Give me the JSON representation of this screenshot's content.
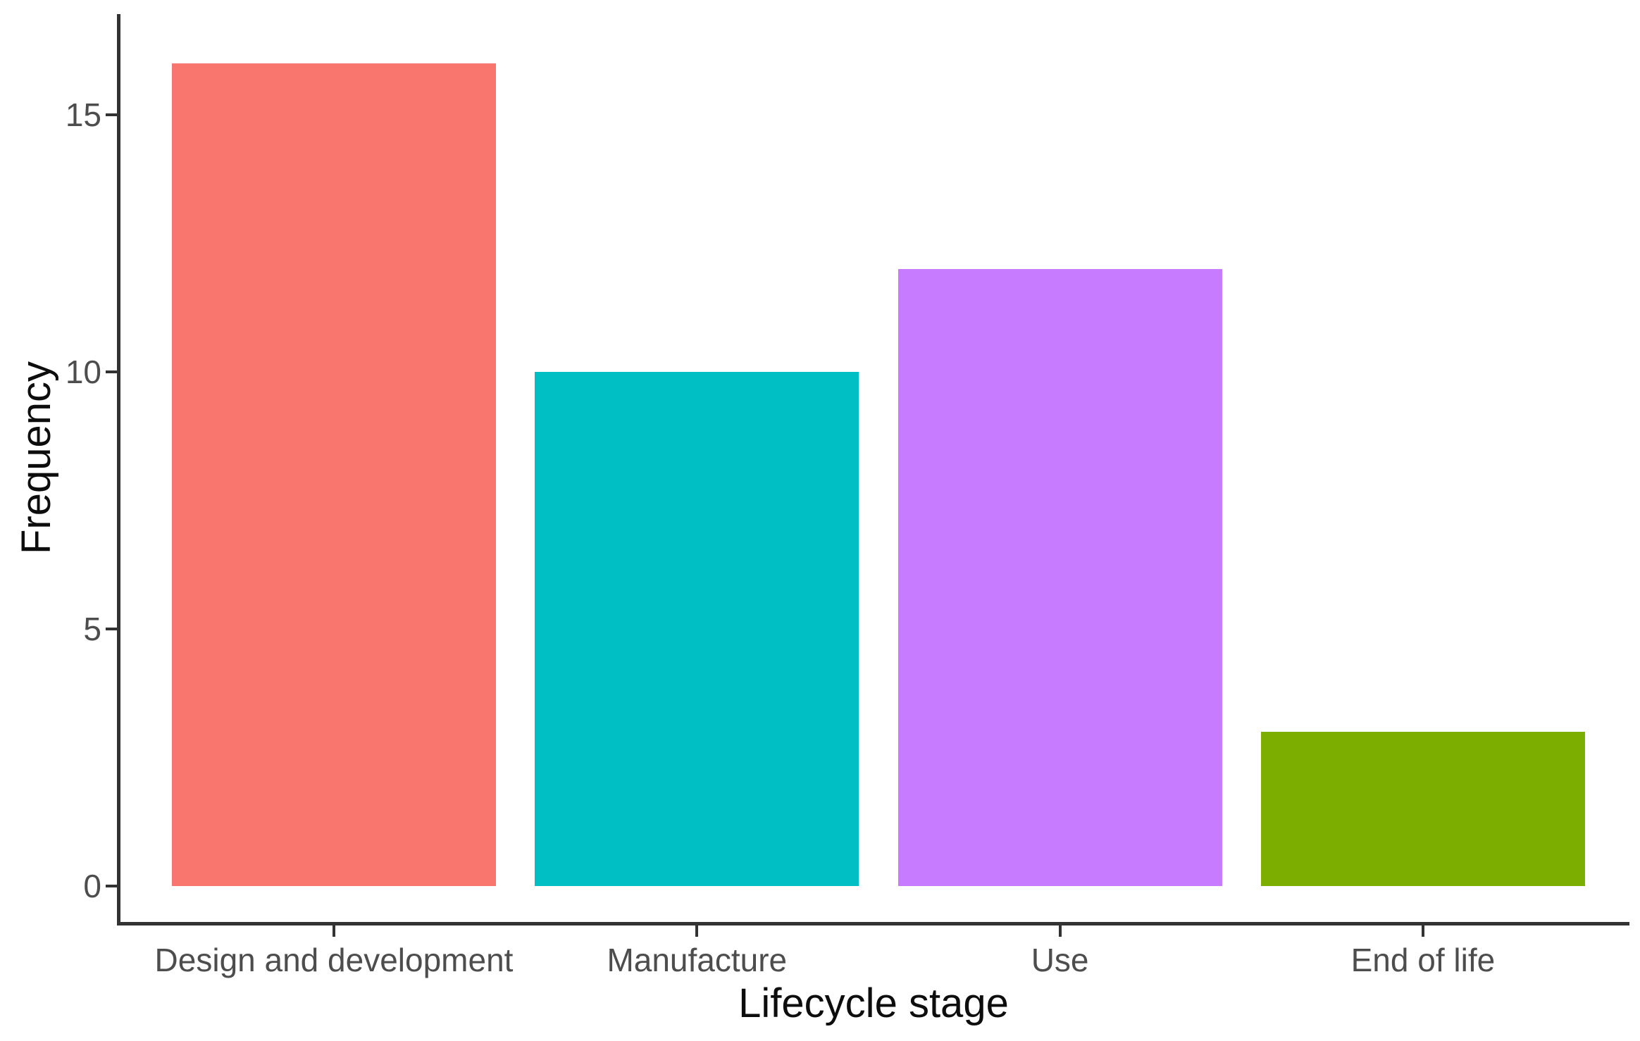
{
  "chart_data": {
    "type": "bar",
    "categories": [
      "Design and development",
      "Manufacture",
      "Use",
      "End of life"
    ],
    "values": [
      16,
      10,
      12,
      3
    ],
    "bar_colors": [
      "#F8766D",
      "#00BFC4",
      "#C77CFF",
      "#7CAE00"
    ],
    "xlabel": "Lifecycle stage",
    "ylabel": "Frequency",
    "yticks": [
      0,
      5,
      10,
      15
    ],
    "ylim": [
      0,
      16.8
    ],
    "grid": false,
    "legend_position": "none",
    "style": {
      "background": "#ffffff",
      "axis_line_color": "#333333",
      "tick_label_color": "#4d4d4d",
      "axis_title_color": "#0d0d0d"
    }
  }
}
